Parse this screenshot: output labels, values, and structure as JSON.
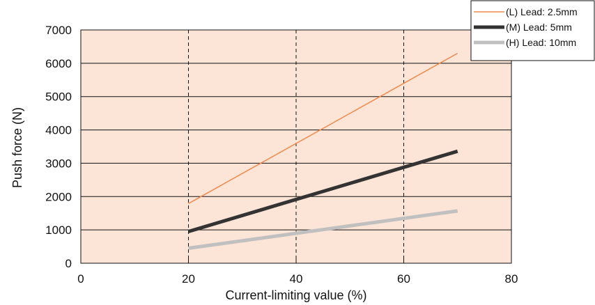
{
  "chart_data": {
    "type": "line",
    "xlabel": "Current-limiting value (%)",
    "ylabel": "Push force (N)",
    "xlim": [
      0,
      80
    ],
    "ylim": [
      0,
      7000
    ],
    "xticks": [
      0,
      20,
      40,
      60,
      80
    ],
    "yticks": [
      0,
      1000,
      2000,
      3000,
      4000,
      5000,
      6000,
      7000
    ],
    "grid": {
      "horizontal": "solid",
      "vertical": "dashed",
      "vertical_at": [
        20,
        40,
        60
      ]
    },
    "plot_background": "#fce4d6",
    "legend_position": "top-right",
    "series": [
      {
        "name": "(L) Lead: 2.5mm",
        "color": "#f08a4b",
        "stroke": "thin",
        "x": [
          20,
          70
        ],
        "y": [
          1790,
          6300
        ]
      },
      {
        "name": "(M) Lead: 5mm",
        "color": "#333333",
        "stroke": "thick",
        "x": [
          20,
          70
        ],
        "y": [
          950,
          3360
        ]
      },
      {
        "name": "(H) Lead: 10mm",
        "color": "#c0c0c0",
        "stroke": "thick",
        "x": [
          20,
          70
        ],
        "y": [
          450,
          1570
        ]
      }
    ]
  }
}
